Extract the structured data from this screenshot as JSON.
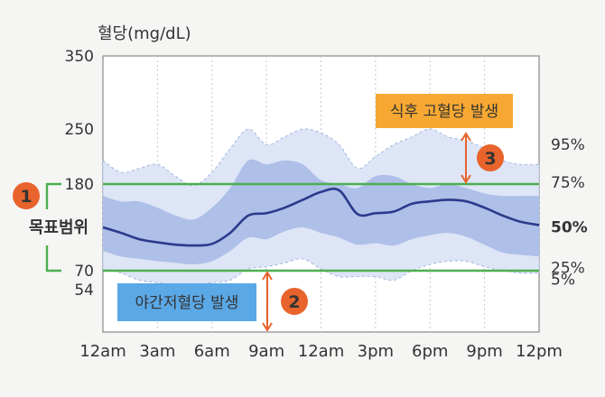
{
  "chart_data": {
    "type": "area",
    "ylabel": "혈당(mg/dL)",
    "y_ticks": [
      54,
      70,
      180,
      250,
      350
    ],
    "ylim": [
      0,
      350
    ],
    "x_ticks": [
      "12am",
      "3am",
      "6am",
      "9am",
      "12am",
      "3pm",
      "6pm",
      "9pm",
      "12pm"
    ],
    "grid_vertical": true,
    "target_range": {
      "low": 70,
      "high": 180,
      "label": "목표범위",
      "marker": "1",
      "color": "#4caf50"
    },
    "percentile_labels": {
      "p95": "95%",
      "p75": "75%",
      "p50": "50%",
      "p25": "25%",
      "p5": "5%"
    },
    "x": [
      0,
      1,
      2,
      3,
      4,
      5,
      6,
      7,
      8,
      9,
      10,
      11,
      12,
      13,
      14,
      15,
      16,
      17,
      18,
      19,
      20,
      21,
      22,
      23,
      24
    ],
    "series": [
      {
        "name": "95%",
        "values": [
          210,
          195,
          200,
          205,
          190,
          178,
          195,
          225,
          250,
          230,
          240,
          250,
          245,
          230,
          200,
          215,
          230,
          240,
          250,
          240,
          235,
          225,
          210,
          205,
          205
        ]
      },
      {
        "name": "75%",
        "values": [
          165,
          158,
          158,
          150,
          140,
          135,
          150,
          175,
          210,
          205,
          210,
          205,
          185,
          180,
          175,
          190,
          190,
          180,
          175,
          180,
          175,
          168,
          165,
          165,
          165
        ]
      },
      {
        "name": "50%",
        "values": [
          125,
          118,
          110,
          106,
          103,
          102,
          104,
          118,
          140,
          143,
          150,
          160,
          170,
          172,
          142,
          143,
          145,
          155,
          158,
          160,
          158,
          150,
          140,
          132,
          128
        ]
      },
      {
        "name": "25%",
        "values": [
          95,
          88,
          85,
          82,
          80,
          78,
          82,
          95,
          112,
          110,
          120,
          125,
          118,
          112,
          103,
          105,
          102,
          110,
          115,
          118,
          113,
          103,
          93,
          90,
          88
        ]
      },
      {
        "name": "5%",
        "values": [
          72,
          68,
          62,
          60,
          58,
          57,
          60,
          62,
          72,
          75,
          80,
          85,
          72,
          65,
          65,
          65,
          62,
          70,
          78,
          82,
          82,
          75,
          70,
          68,
          68
        ]
      }
    ],
    "callouts": [
      {
        "marker": "2",
        "label": "야간저혈당 발생",
        "color": "#5ba8e6"
      },
      {
        "marker": "3",
        "label": "식후 고혈당 발생",
        "color": "#f7a832"
      }
    ],
    "colors": {
      "outer_band": "#dde5f6",
      "inner_band": "#aebfe8",
      "median": "#2b3a8c",
      "marker": "#e8642c",
      "arrow": "#e8642c"
    }
  }
}
